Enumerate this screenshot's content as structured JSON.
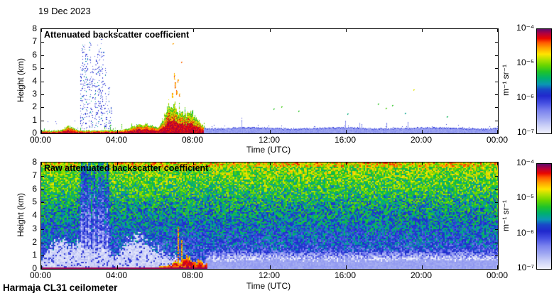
{
  "page": {
    "bg": "#ffffff",
    "date_label": "19 Dec 2023",
    "footer": "Harmaja CL31 ceilometer"
  },
  "axes": {
    "time_label": "Time (UTC)",
    "height_label": "Height (km)",
    "time_ticks": [
      "00:00",
      "04:00",
      "08:00",
      "12:00",
      "16:00",
      "20:00",
      "00:00"
    ],
    "height_ticks": [
      0,
      1,
      2,
      3,
      4,
      5,
      6,
      7,
      8
    ]
  },
  "colorbar": {
    "unit": "m⁻¹ sr⁻¹",
    "tick_labels": [
      "10⁻⁴",
      "10⁻⁵",
      "10⁻⁶",
      "10⁻⁷"
    ],
    "range_log10": [
      -4,
      -7
    ]
  },
  "palette": [
    [
      0.0,
      "#f0f1fc"
    ],
    [
      0.07,
      "#cdd2f7"
    ],
    [
      0.14,
      "#a3abf2"
    ],
    [
      0.22,
      "#7a82ee"
    ],
    [
      0.29,
      "#4650e2"
    ],
    [
      0.36,
      "#2028cd"
    ],
    [
      0.42,
      "#1847c8"
    ],
    [
      0.47,
      "#0a96b4"
    ],
    [
      0.53,
      "#00b06e"
    ],
    [
      0.59,
      "#1ec32a"
    ],
    [
      0.65,
      "#66d400"
    ],
    [
      0.71,
      "#b4e200"
    ],
    [
      0.76,
      "#ffe400"
    ],
    [
      0.82,
      "#ffa200"
    ],
    [
      0.87,
      "#ff5a00"
    ],
    [
      0.91,
      "#e90700"
    ],
    [
      0.96,
      "#b00040"
    ],
    [
      1.0,
      "#5e0a68"
    ]
  ],
  "chart_data": [
    {
      "type": "heatmap",
      "title": "Attenuated backscatter coefficient",
      "xlabel": "Time (UTC)",
      "ylabel": "Height (km)",
      "x_ticks": [
        "00:00",
        "04:00",
        "08:00",
        "12:00",
        "16:00",
        "20:00",
        "00:00"
      ],
      "x_range_hours": [
        0,
        24
      ],
      "y_ticks": [
        0,
        1,
        2,
        3,
        4,
        5,
        6,
        7,
        8
      ],
      "y_range_km": [
        0,
        8
      ],
      "colorscale_ticks": [
        "10⁻⁴",
        "10⁻⁵",
        "10⁻⁶",
        "10⁻⁷"
      ],
      "features": {
        "surface_layer": {
          "t_end_hours": 8.7,
          "base_thickness_km": 0.22,
          "bumps": [
            {
              "t": 1.45,
              "w": 0.3,
              "dh": 0.3
            },
            {
              "t": 5.35,
              "w": 0.75,
              "dh": 0.5
            },
            {
              "t": 6.75,
              "w": 0.35,
              "dh": 1.3
            },
            {
              "t": 7.4,
              "w": 0.75,
              "dh": 1.2
            },
            {
              "t": 8.05,
              "w": 0.4,
              "dh": 0.6
            }
          ],
          "event_window": [
            6.35,
            8.35
          ],
          "spike_window": [
            6.35,
            7.6
          ],
          "spike_top_km": 3.0
        },
        "precip_columns": [
          {
            "t": 2.08,
            "top": 5.2
          },
          {
            "t": 2.18,
            "top": 6.8
          },
          {
            "t": 2.28,
            "top": 7.1
          },
          {
            "t": 2.4,
            "top": 6.2
          },
          {
            "t": 2.52,
            "top": 7.2
          },
          {
            "t": 2.66,
            "top": 5.6
          },
          {
            "t": 2.82,
            "top": 6.0
          },
          {
            "t": 3.0,
            "top": 7.0
          },
          {
            "t": 3.1,
            "top": 7.3
          },
          {
            "t": 3.22,
            "top": 6.5
          },
          {
            "t": 3.36,
            "top": 5.0
          },
          {
            "t": 3.5,
            "top": 4.2
          },
          {
            "t": 3.62,
            "top": 2.0
          }
        ],
        "elevated_dashes": [
          {
            "t": 6.88,
            "h1": 2.8,
            "h2": 3.1
          },
          {
            "t": 6.97,
            "h1": 4.2,
            "h2": 4.6
          },
          {
            "t": 7.03,
            "h1": 3.5,
            "h2": 3.9
          },
          {
            "t": 7.1,
            "h1": 3.0,
            "h2": 3.3
          },
          {
            "t": 7.18,
            "h1": 3.9,
            "h2": 4.15
          },
          {
            "t": 7.25,
            "h1": 2.9,
            "h2": 3.05
          }
        ],
        "aerosol_layer": {
          "t_start_hours": 8.55,
          "top_km": 0.42
        },
        "specks": [
          {
            "t": 6.9,
            "h": 6.9,
            "v": 0.82
          },
          {
            "t": 7.35,
            "h": 5.5,
            "v": 0.86
          },
          {
            "t": 12.2,
            "h": 1.9,
            "v": 0.6
          },
          {
            "t": 12.6,
            "h": 2.05,
            "v": 0.62
          },
          {
            "t": 13.5,
            "h": 1.75,
            "v": 0.6
          },
          {
            "t": 16.1,
            "h": 1.5,
            "v": 0.52
          },
          {
            "t": 17.7,
            "h": 2.3,
            "v": 0.6
          },
          {
            "t": 18.1,
            "h": 1.95,
            "v": 0.63
          },
          {
            "t": 18.45,
            "h": 2.2,
            "v": 0.6
          },
          {
            "t": 19.1,
            "h": 1.6,
            "v": 0.5
          },
          {
            "t": 19.55,
            "h": 3.4,
            "v": 0.74
          },
          {
            "t": 21.3,
            "h": 1.3,
            "v": 0.55
          }
        ]
      }
    },
    {
      "type": "heatmap",
      "title": "Raw attenuated backscatter coefficient",
      "xlabel": "Time (UTC)",
      "ylabel": "Height (km)",
      "x_ticks": [
        "00:00",
        "04:00",
        "08:00",
        "12:00",
        "16:00",
        "20:00",
        "00:00"
      ],
      "x_range_hours": [
        0,
        24
      ],
      "y_ticks": [
        0,
        1,
        2,
        3,
        4,
        5,
        6,
        7,
        8
      ],
      "y_range_km": [
        0,
        8
      ],
      "colorscale_ticks": [
        "10⁻⁴",
        "10⁻⁵",
        "10⁻⁶",
        "10⁻⁷"
      ],
      "features": {
        "noise": {
          "base": 0.3,
          "gain": 0.4,
          "exp": 1.15,
          "jitter": 0.3,
          "top_boost_above_km": 7.7,
          "top_boost": 0.06
        },
        "white_patch_top_anchors": [
          [
            0,
            0.7
          ],
          [
            0.5,
            1.8
          ],
          [
            1.0,
            2.2
          ],
          [
            1.5,
            1.6
          ],
          [
            2.0,
            1.9
          ],
          [
            2.5,
            1.3
          ],
          [
            3.0,
            1.6
          ],
          [
            3.5,
            1.2
          ],
          [
            4.0,
            0.9
          ],
          [
            4.5,
            2.0
          ],
          [
            5.0,
            2.4
          ],
          [
            5.5,
            1.9
          ],
          [
            6.0,
            1.5
          ],
          [
            6.5,
            1.0
          ],
          [
            7.0,
            0.9
          ],
          [
            7.5,
            0.5
          ],
          [
            8.0,
            0.4
          ],
          [
            8.6,
            0.3
          ]
        ],
        "precip_bands": {
          "centers": [
            2.1,
            2.3,
            2.5,
            2.75,
            3.0,
            3.2,
            3.45
          ],
          "halfwidth_hours": 0.09,
          "deficit": 0.24
        },
        "surface_layer": {
          "t_end_hours": 8.7,
          "thickness_km": 0.14,
          "event": {
            "t": 7.7,
            "w": 0.85,
            "dh": 0.7
          }
        },
        "red_streaks": [
          {
            "t": 7.15,
            "top": 3.2
          },
          {
            "t": 7.35,
            "top": 2.2
          }
        ],
        "low_band_after": {
          "t_start_hours": 8.6,
          "top_km": 0.65,
          "white_fade_below_km": 1.5
        }
      }
    }
  ]
}
